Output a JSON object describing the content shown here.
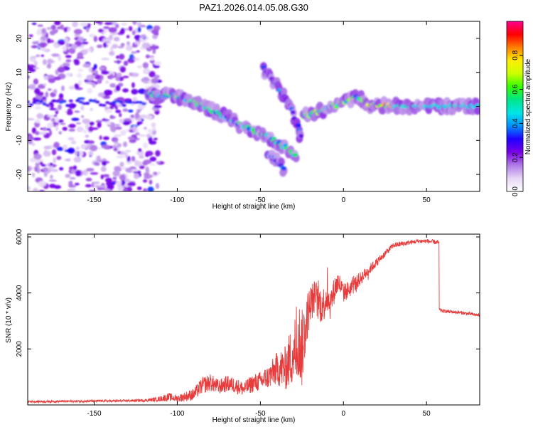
{
  "chart_data": [
    {
      "type": "heatmap",
      "title": "PAZ1.2026.014.05.08.G30",
      "xlabel": "Height of straight line (km)",
      "ylabel": "Frequency (Hz)",
      "xlim": [
        -190,
        82
      ],
      "ylim": [
        -25,
        25
      ],
      "xticks": [
        -150,
        -100,
        -50,
        0,
        50
      ],
      "yticks": [
        -20,
        -10,
        0,
        10,
        20
      ],
      "colorbar": {
        "label": "Normalized spectral amplitude",
        "range": [
          0,
          1
        ],
        "ticks": [
          "0.0",
          "0.2",
          "0.4",
          "0.6",
          "0.8"
        ],
        "colors": [
          "#ffffff",
          "#e6d6f7",
          "#b07ce6",
          "#7a00e6",
          "#2000ff",
          "#0090ff",
          "#00e6e6",
          "#00e68c",
          "#33ff00",
          "#ccff00",
          "#ffee00",
          "#ff8000",
          "#ff0000",
          "#ff0090"
        ]
      },
      "features": [
        {
          "name": "noise-region",
          "x_range": [
            -190,
            -118
          ],
          "freq_range": [
            -25,
            25
          ],
          "amplitude": 0.2
        },
        {
          "name": "main-trace",
          "points": [
            [
              -118,
              3.5
            ],
            [
              -100,
              3
            ],
            [
              -88,
              1
            ],
            [
              -75,
              -2
            ],
            [
              -60,
              -6
            ],
            [
              -45,
              -9
            ],
            [
              -35,
              -12
            ],
            [
              -28,
              -15
            ]
          ],
          "amplitude": 0.55
        },
        {
          "name": "upper-branch",
          "points": [
            [
              -48,
              11
            ],
            [
              -40,
              6
            ],
            [
              -32,
              0
            ],
            [
              -27,
              -6
            ],
            [
              -25,
              -10
            ]
          ],
          "amplitude": 0.35
        },
        {
          "name": "lower-branch",
          "points": [
            [
              -45,
              -14
            ],
            [
              -40,
              -16
            ],
            [
              -35,
              -19
            ]
          ],
          "amplitude": 0.35
        },
        {
          "name": "rising-trace",
          "points": [
            [
              -24,
              -3
            ],
            [
              -12,
              -1
            ],
            [
              0,
              1
            ],
            [
              8,
              3
            ],
            [
              14,
              1
            ]
          ],
          "amplitude": 0.6
        },
        {
          "name": "steady-band",
          "points": [
            [
              14,
              0.5
            ],
            [
              40,
              0
            ],
            [
              82,
              0
            ]
          ],
          "amplitude": 0.75
        }
      ]
    },
    {
      "type": "line",
      "xlabel": "Height of straight line (km)",
      "ylabel": "SNR (10 * v/v)",
      "xlim": [
        -190,
        82
      ],
      "ylim": [
        0,
        6100
      ],
      "xticks": [
        -150,
        -100,
        -50,
        0,
        50
      ],
      "yticks": [
        2000,
        4000,
        6000
      ],
      "color": "#e83c3c",
      "series": [
        {
          "name": "SNR",
          "x": [
            -190,
            -180,
            -170,
            -160,
            -150,
            -140,
            -130,
            -120,
            -112,
            -105,
            -100,
            -95,
            -90,
            -85,
            -80,
            -75,
            -70,
            -65,
            -60,
            -55,
            -50,
            -45,
            -40,
            -35,
            -30,
            -27,
            -25,
            -22,
            -20,
            -17,
            -15,
            -12,
            -10,
            -8,
            -5,
            -3,
            0,
            5,
            10,
            15,
            20,
            25,
            30,
            35,
            40,
            45,
            50,
            57.5,
            57.6,
            60,
            70,
            82
          ],
          "y": [
            120,
            120,
            130,
            130,
            140,
            140,
            150,
            160,
            200,
            280,
            230,
            300,
            380,
            700,
            800,
            640,
            760,
            700,
            560,
            760,
            840,
            1000,
            1300,
            1300,
            1900,
            2300,
            2000,
            3100,
            3600,
            3900,
            3600,
            3600,
            3900,
            3600,
            4200,
            4400,
            4000,
            4200,
            4500,
            4800,
            5100,
            5400,
            5700,
            5750,
            5800,
            5850,
            5850,
            5800,
            3400,
            3350,
            3300,
            3200
          ],
          "noise_amplitude": [
            40,
            40,
            40,
            40,
            40,
            40,
            40,
            50,
            80,
            150,
            120,
            180,
            220,
            300,
            320,
            260,
            300,
            280,
            260,
            320,
            360,
            420,
            600,
            800,
            1200,
            1500,
            1400,
            900,
            700,
            600,
            700,
            650,
            600,
            550,
            450,
            400,
            350,
            300,
            250,
            200,
            150,
            120,
            100,
            100,
            80,
            80,
            80,
            80,
            60,
            60,
            60,
            60
          ]
        }
      ]
    }
  ]
}
